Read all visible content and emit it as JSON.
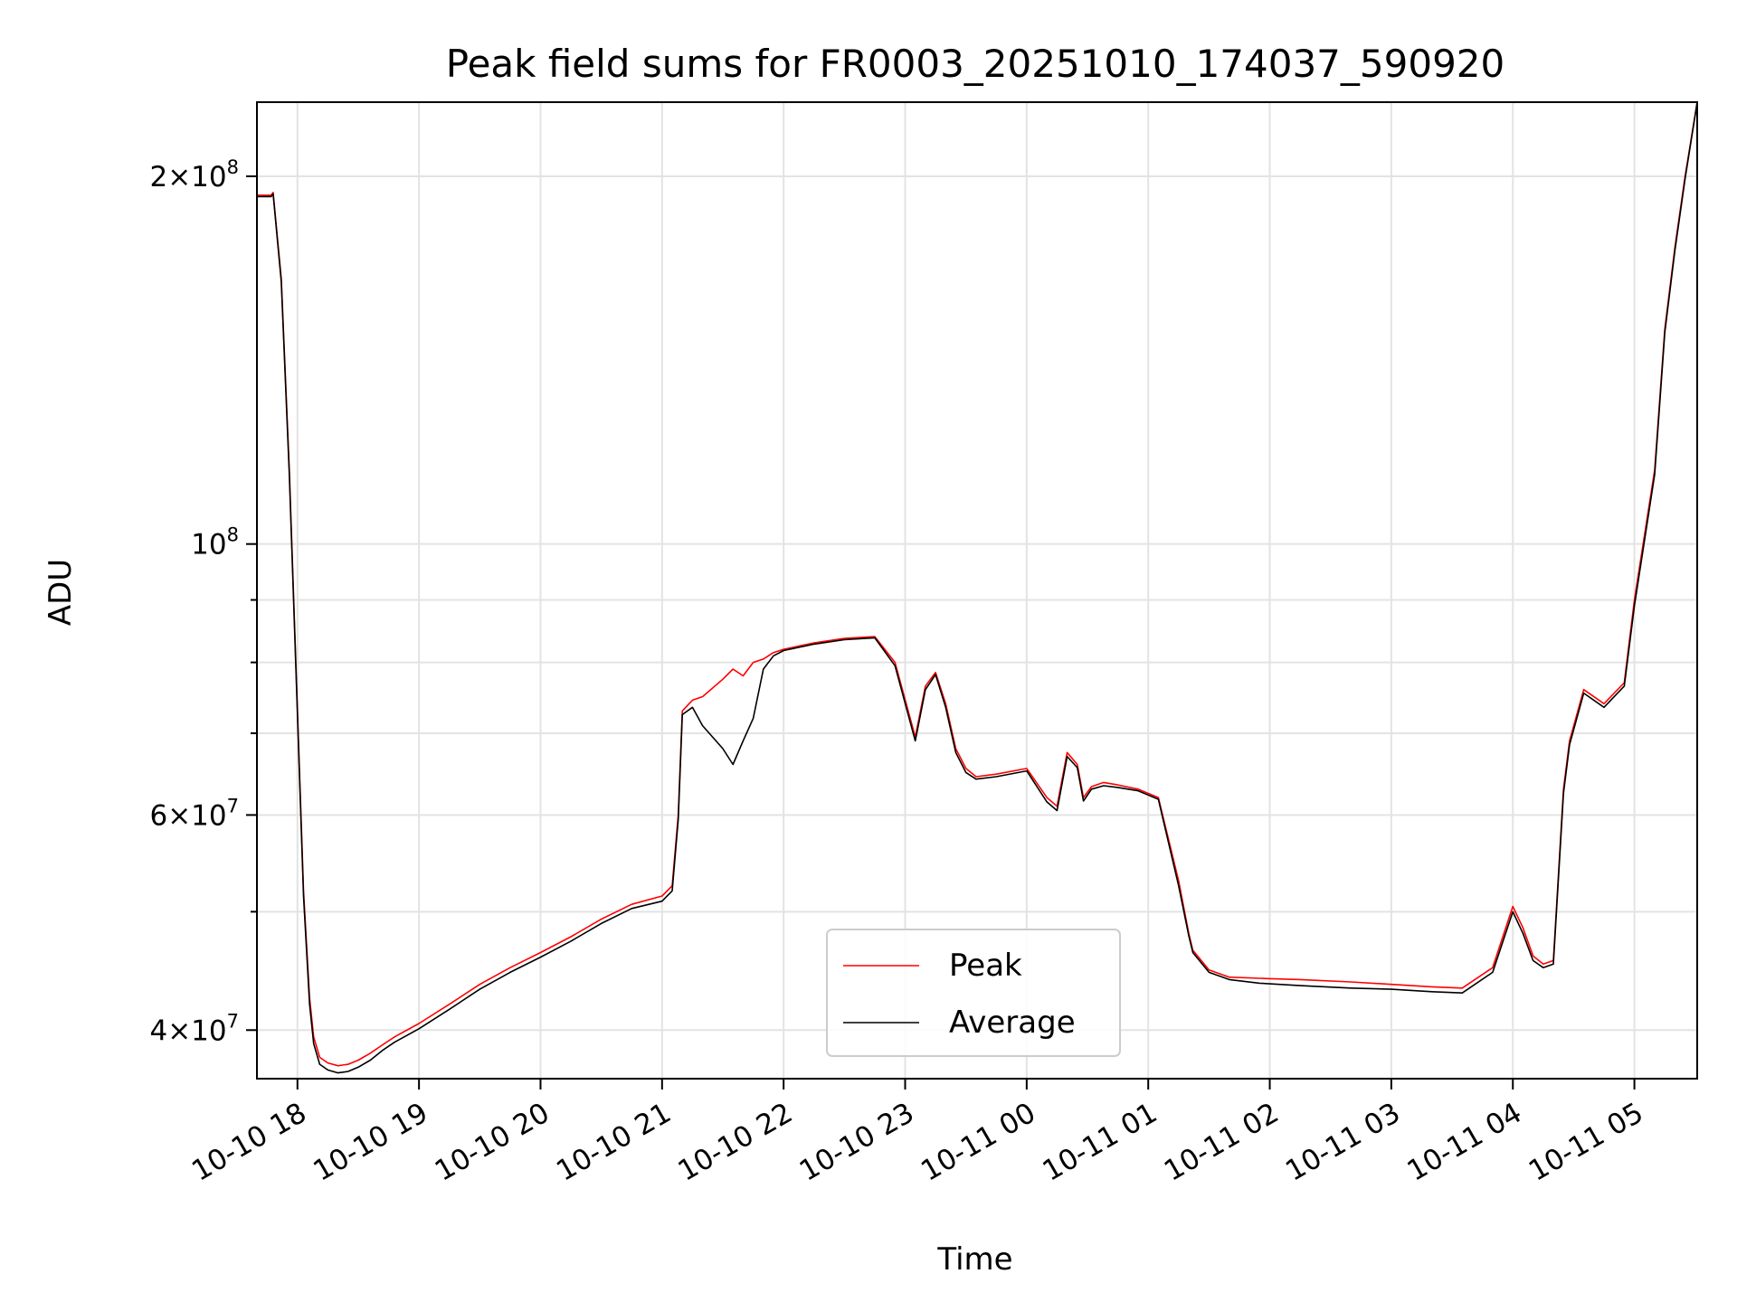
{
  "chart_data": {
    "type": "line",
    "title": "Peak field sums for FR0003_20251010_174037_590920",
    "xlabel": "Time",
    "ylabel": "ADU",
    "x_ticks": [
      "10-10 18",
      "10-10 19",
      "10-10 20",
      "10-10 21",
      "10-10 22",
      "10-10 23",
      "10-11 00",
      "10-11 01",
      "10-11 02",
      "10-11 03",
      "10-11 04",
      "10-11 05"
    ],
    "y_ticks": [
      {
        "base": "4",
        "times": "×",
        "power": "10",
        "exp": "7",
        "value": 40000000
      },
      {
        "base": "6",
        "times": "×",
        "power": "10",
        "exp": "7",
        "value": 60000000
      },
      {
        "base": "",
        "times": "",
        "power": "10",
        "exp": "8",
        "value": 100000000
      },
      {
        "base": "2",
        "times": "×",
        "power": "10",
        "exp": "8",
        "value": 200000000
      }
    ],
    "y_scale": "log",
    "ylim": [
      36500000,
      230000000
    ],
    "xlim": [
      "2025-10-10 17:40",
      "2025-10-11 05:31"
    ],
    "grid": true,
    "legend_position": "lower-center",
    "series": [
      {
        "name": "Peak",
        "color": "#ff0000",
        "x": [
          "2025-10-10 17:40",
          "2025-10-10 17:47",
          "2025-10-10 17:48",
          "2025-10-10 17:52",
          "2025-10-10 17:56",
          "2025-10-10 18:00",
          "2025-10-10 18:03",
          "2025-10-10 18:06",
          "2025-10-10 18:08",
          "2025-10-10 18:11",
          "2025-10-10 18:15",
          "2025-10-10 18:20",
          "2025-10-10 18:25",
          "2025-10-10 18:30",
          "2025-10-10 18:36",
          "2025-10-10 18:42",
          "2025-10-10 18:48",
          "2025-10-10 19:00",
          "2025-10-10 19:15",
          "2025-10-10 19:30",
          "2025-10-10 19:45",
          "2025-10-10 20:00",
          "2025-10-10 20:15",
          "2025-10-10 20:30",
          "2025-10-10 20:45",
          "2025-10-10 21:00",
          "2025-10-10 21:05",
          "2025-10-10 21:08",
          "2025-10-10 21:10",
          "2025-10-10 21:15",
          "2025-10-10 21:20",
          "2025-10-10 21:30",
          "2025-10-10 21:35",
          "2025-10-10 21:40",
          "2025-10-10 21:45",
          "2025-10-10 21:50",
          "2025-10-10 21:55",
          "2025-10-10 22:00",
          "2025-10-10 22:15",
          "2025-10-10 22:30",
          "2025-10-10 22:45",
          "2025-10-10 22:55",
          "2025-10-10 23:05",
          "2025-10-10 23:10",
          "2025-10-10 23:15",
          "2025-10-10 23:20",
          "2025-10-10 23:25",
          "2025-10-10 23:30",
          "2025-10-10 23:35",
          "2025-10-10 23:45",
          "2025-10-11 00:00",
          "2025-10-11 00:10",
          "2025-10-11 00:15",
          "2025-10-11 00:20",
          "2025-10-11 00:25",
          "2025-10-11 00:28",
          "2025-10-11 00:32",
          "2025-10-11 00:38",
          "2025-10-11 00:45",
          "2025-10-11 00:55",
          "2025-10-11 01:05",
          "2025-10-11 01:15",
          "2025-10-11 01:20",
          "2025-10-11 01:22",
          "2025-10-11 01:30",
          "2025-10-11 01:40",
          "2025-10-11 01:55",
          "2025-10-11 02:15",
          "2025-10-11 02:40",
          "2025-10-11 03:00",
          "2025-10-11 03:20",
          "2025-10-11 03:35",
          "2025-10-11 03:50",
          "2025-10-11 04:00",
          "2025-10-11 04:05",
          "2025-10-11 04:10",
          "2025-10-11 04:15",
          "2025-10-11 04:20",
          "2025-10-11 04:25",
          "2025-10-11 04:28",
          "2025-10-11 04:35",
          "2025-10-11 04:45",
          "2025-10-11 04:55",
          "2025-10-11 05:00",
          "2025-10-11 05:10",
          "2025-10-11 05:15",
          "2025-10-11 05:20",
          "2025-10-11 05:25",
          "2025-10-11 05:31"
        ],
        "y": [
          193000000,
          193000000,
          194000000,
          165000000,
          115000000,
          73000000,
          52000000,
          42500000,
          39500000,
          38000000,
          37600000,
          37400000,
          37500000,
          37800000,
          38300000,
          38900000,
          39500000,
          40500000,
          42000000,
          43600000,
          45000000,
          46300000,
          47700000,
          49300000,
          50700000,
          51500000,
          52500000,
          60000000,
          73000000,
          74500000,
          75000000,
          77500000,
          79000000,
          78000000,
          80000000,
          80500000,
          81500000,
          82000000,
          83000000,
          83700000,
          84000000,
          80000000,
          69500000,
          76500000,
          78500000,
          74000000,
          68000000,
          65500000,
          64500000,
          64800000,
          65500000,
          62000000,
          61000000,
          67500000,
          66000000,
          62000000,
          63300000,
          63800000,
          63500000,
          63000000,
          62000000,
          53000000,
          48000000,
          46500000,
          44800000,
          44200000,
          44100000,
          44000000,
          43800000,
          43600000,
          43400000,
          43300000,
          45000000,
          50500000,
          48500000,
          46000000,
          45300000,
          45600000,
          63000000,
          69000000,
          76000000,
          74000000,
          77000000,
          90000000,
          115000000,
          150000000,
          175000000,
          200000000,
          230000000
        ]
      },
      {
        "name": "Average",
        "color": "#000000",
        "x": [
          "2025-10-10 17:40",
          "2025-10-10 17:47",
          "2025-10-10 17:48",
          "2025-10-10 17:52",
          "2025-10-10 17:56",
          "2025-10-10 18:00",
          "2025-10-10 18:03",
          "2025-10-10 18:06",
          "2025-10-10 18:08",
          "2025-10-10 18:11",
          "2025-10-10 18:15",
          "2025-10-10 18:20",
          "2025-10-10 18:25",
          "2025-10-10 18:30",
          "2025-10-10 18:36",
          "2025-10-10 18:42",
          "2025-10-10 18:48",
          "2025-10-10 19:00",
          "2025-10-10 19:15",
          "2025-10-10 19:30",
          "2025-10-10 19:45",
          "2025-10-10 20:00",
          "2025-10-10 20:15",
          "2025-10-10 20:30",
          "2025-10-10 20:45",
          "2025-10-10 21:00",
          "2025-10-10 21:05",
          "2025-10-10 21:08",
          "2025-10-10 21:10",
          "2025-10-10 21:15",
          "2025-10-10 21:20",
          "2025-10-10 21:30",
          "2025-10-10 21:35",
          "2025-10-10 21:40",
          "2025-10-10 21:45",
          "2025-10-10 21:50",
          "2025-10-10 21:55",
          "2025-10-10 22:00",
          "2025-10-10 22:15",
          "2025-10-10 22:30",
          "2025-10-10 22:45",
          "2025-10-10 22:55",
          "2025-10-10 23:05",
          "2025-10-10 23:10",
          "2025-10-10 23:15",
          "2025-10-10 23:20",
          "2025-10-10 23:25",
          "2025-10-10 23:30",
          "2025-10-10 23:35",
          "2025-10-10 23:45",
          "2025-10-11 00:00",
          "2025-10-11 00:10",
          "2025-10-11 00:15",
          "2025-10-11 00:20",
          "2025-10-11 00:25",
          "2025-10-11 00:28",
          "2025-10-11 00:32",
          "2025-10-11 00:38",
          "2025-10-11 00:45",
          "2025-10-11 00:55",
          "2025-10-11 01:05",
          "2025-10-11 01:15",
          "2025-10-11 01:20",
          "2025-10-11 01:22",
          "2025-10-11 01:30",
          "2025-10-11 01:40",
          "2025-10-11 01:55",
          "2025-10-11 02:15",
          "2025-10-11 02:40",
          "2025-10-11 03:00",
          "2025-10-11 03:20",
          "2025-10-11 03:35",
          "2025-10-11 03:50",
          "2025-10-11 04:00",
          "2025-10-11 04:05",
          "2025-10-11 04:10",
          "2025-10-11 04:15",
          "2025-10-11 04:20",
          "2025-10-11 04:25",
          "2025-10-11 04:28",
          "2025-10-11 04:35",
          "2025-10-11 04:45",
          "2025-10-11 04:55",
          "2025-10-11 05:00",
          "2025-10-11 05:10",
          "2025-10-11 05:15",
          "2025-10-11 05:20",
          "2025-10-11 05:25",
          "2025-10-11 05:31"
        ],
        "y": [
          192500000,
          192500000,
          193500000,
          164000000,
          114000000,
          72500000,
          51500000,
          42000000,
          39000000,
          37500000,
          37100000,
          36900000,
          37000000,
          37300000,
          37800000,
          38500000,
          39100000,
          40100000,
          41600000,
          43200000,
          44600000,
          45900000,
          47300000,
          48900000,
          50300000,
          51000000,
          52000000,
          59500000,
          72500000,
          73500000,
          71000000,
          68000000,
          66000000,
          69000000,
          72000000,
          79000000,
          81000000,
          81800000,
          82800000,
          83500000,
          83800000,
          79500000,
          69000000,
          76000000,
          78200000,
          73500000,
          67500000,
          65000000,
          64200000,
          64500000,
          65200000,
          61500000,
          60500000,
          67000000,
          65600000,
          61600000,
          63000000,
          63400000,
          63200000,
          62800000,
          61800000,
          52500000,
          47800000,
          46300000,
          44600000,
          44000000,
          43700000,
          43500000,
          43300000,
          43200000,
          43000000,
          42900000,
          44600000,
          50000000,
          48000000,
          45600000,
          45000000,
          45300000,
          62500000,
          68500000,
          75500000,
          73500000,
          76500000,
          89000000,
          114000000,
          149000000,
          174000000,
          199000000,
          230000000
        ]
      }
    ]
  }
}
